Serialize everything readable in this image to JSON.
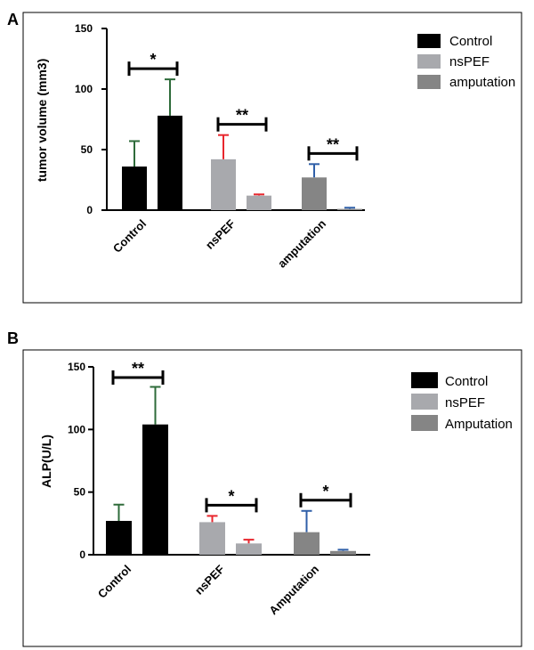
{
  "colors": {
    "control": "#000000",
    "nspef": "#a8a9ad",
    "amputation": "#858585",
    "err_control": "#2e6b3a",
    "err_nspef": "#e8262d",
    "err_amputation": "#2f5fa8"
  },
  "chart_data": [
    {
      "type": "bar",
      "panel": "A",
      "ylabel": "tumor volume (mm3)",
      "ylim": [
        0,
        150
      ],
      "yticks": [
        0,
        50,
        100,
        150
      ],
      "categories": [
        "Control",
        "nsPEF",
        "amputation"
      ],
      "legend": [
        "Control",
        "nsPEF",
        "amputation"
      ],
      "legend_position": "top-right",
      "bars": [
        {
          "group": "Control",
          "values": [
            36,
            78
          ],
          "errors": [
            21,
            30
          ],
          "color": "control",
          "err_color": "err_control"
        },
        {
          "group": "nsPEF",
          "values": [
            42,
            12
          ],
          "errors": [
            20,
            1
          ],
          "color": "nspef",
          "err_color": "err_nspef"
        },
        {
          "group": "amputation",
          "values": [
            27,
            1
          ],
          "errors": [
            11,
            1
          ],
          "color": "amputation",
          "err_color": "err_amputation"
        }
      ],
      "significance": [
        {
          "group": "Control",
          "label": "*"
        },
        {
          "group": "nsPEF",
          "label": "**"
        },
        {
          "group": "amputation",
          "label": "**"
        }
      ]
    },
    {
      "type": "bar",
      "panel": "B",
      "ylabel": "ALP(U/L)",
      "ylim": [
        0,
        150
      ],
      "yticks": [
        0,
        50,
        100,
        150
      ],
      "categories": [
        "Control",
        "nsPEF",
        "Amputation"
      ],
      "legend": [
        "Control",
        "nsPEF",
        "Amputation"
      ],
      "legend_position": "top-right",
      "bars": [
        {
          "group": "Control",
          "values": [
            27,
            104
          ],
          "errors": [
            13,
            30
          ],
          "color": "control",
          "err_color": "err_control"
        },
        {
          "group": "nsPEF",
          "values": [
            26,
            9
          ],
          "errors": [
            5,
            3
          ],
          "color": "nspef",
          "err_color": "err_nspef"
        },
        {
          "group": "Amputation",
          "values": [
            18,
            3
          ],
          "errors": [
            17,
            1
          ],
          "color": "amputation",
          "err_color": "err_amputation"
        }
      ],
      "significance": [
        {
          "group": "Control",
          "label": "**"
        },
        {
          "group": "nsPEF",
          "label": "*"
        },
        {
          "group": "Amputation",
          "label": "*"
        }
      ]
    }
  ]
}
